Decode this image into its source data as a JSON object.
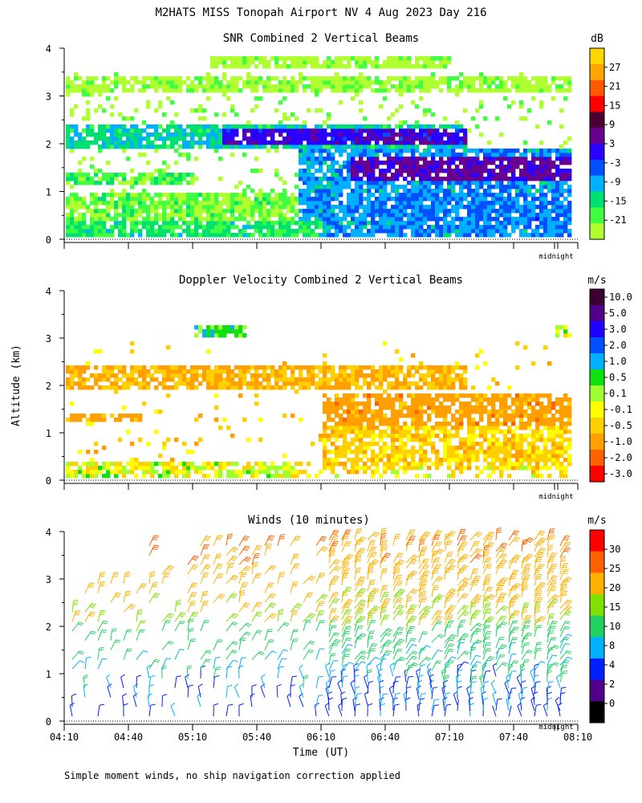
{
  "title": "M2HATS MISS Tonopah Airport NV   4 Aug 2023 Day 216",
  "footer_note": "Simple moment winds, no ship navigation correction applied",
  "ylabel": "Altitude (km)",
  "xlabel": "Time (UT)",
  "midnight_label": "midnight",
  "colors": {
    "bg": "#ffffff",
    "axis": "#000000",
    "dotted": "#000000"
  },
  "chart_data": [
    {
      "type": "heatmap",
      "title": "SNR Combined 2 Vertical Beams",
      "unit": "dB",
      "ylim": [
        0,
        4
      ],
      "yticks": [
        "0",
        "1",
        "2",
        "3",
        "4"
      ],
      "colorbar_labels": [
        "27",
        "21",
        "15",
        "9",
        "3",
        "-3",
        "-9",
        "-15",
        "-21"
      ],
      "colorbar_colors": [
        "#ffd700",
        "#ffa500",
        "#ff5a00",
        "#ff0000",
        "#4a0030",
        "#6a0090",
        "#2a00ff",
        "#0050ff",
        "#00b0ff",
        "#00e070",
        "#40ff40",
        "#b0ff30"
      ],
      "layers": [
        {
          "alt_from": 0.1,
          "alt_to": 0.4,
          "level_db": -12,
          "from": "04:10",
          "to": "08:10"
        },
        {
          "alt_from": 0.4,
          "alt_to": 1.0,
          "level_db": -15,
          "from": "04:10",
          "to": "08:10"
        },
        {
          "alt_from": 2.0,
          "alt_to": 2.4,
          "level_db": -6,
          "from": "04:10",
          "to": "07:10"
        },
        {
          "alt_from": 1.1,
          "alt_to": 1.9,
          "level_db": 0,
          "from": "06:30",
          "to": "08:10"
        },
        {
          "alt_from": 3.1,
          "alt_to": 3.4,
          "level_db": -21,
          "from": "04:10",
          "to": "08:10"
        }
      ]
    },
    {
      "type": "heatmap",
      "title": "Doppler Velocity Combined 2 Vertical Beams",
      "unit": "m/s",
      "ylim": [
        0,
        4
      ],
      "yticks": [
        "0",
        "1",
        "2",
        "3",
        "4"
      ],
      "colorbar_labels": [
        "10.0",
        "5.0",
        "3.0",
        "2.0",
        "1.0",
        "0.5",
        "0.1",
        "-0.1",
        "-0.5",
        "-1.0",
        "-2.0",
        "-3.0"
      ],
      "colorbar_colors": [
        "#3a0030",
        "#50008a",
        "#2000ff",
        "#0050ff",
        "#00b0ff",
        "#10e010",
        "#a0ff30",
        "#ffff00",
        "#ffd000",
        "#ffa000",
        "#ff6000",
        "#ff0000"
      ],
      "layers": [
        {
          "alt_from": 0.1,
          "alt_to": 0.4,
          "level_ms": -0.1,
          "from": "04:10",
          "to": "06:00"
        },
        {
          "alt_from": 2.0,
          "alt_to": 2.5,
          "level_ms": -1.0,
          "from": "04:10",
          "to": "07:10"
        },
        {
          "alt_from": 0.2,
          "alt_to": 1.9,
          "level_ms": -0.5,
          "from": "06:20",
          "to": "08:10"
        },
        {
          "alt_from": 3.1,
          "alt_to": 3.4,
          "level_ms": 0.5,
          "from": "05:00",
          "to": "08:10"
        }
      ]
    },
    {
      "type": "scatter",
      "title": "Winds (10 minutes)",
      "unit": "m/s",
      "ylim": [
        0,
        4
      ],
      "yticks": [
        "0",
        "1",
        "2",
        "3",
        "4"
      ],
      "x": [
        "04:10",
        "04:40",
        "05:10",
        "05:40",
        "06:10",
        "06:40",
        "07:10",
        "07:40",
        "08:10"
      ],
      "colorbar_labels": [
        "30",
        "25",
        "20",
        "15",
        "10",
        "8",
        "4",
        "2",
        "0"
      ],
      "colorbar_colors": [
        "#ff0000",
        "#ff6000",
        "#ffb000",
        "#80e000",
        "#20d060",
        "#00b0ff",
        "#0020ff",
        "#50008a",
        "#000000"
      ]
    }
  ]
}
